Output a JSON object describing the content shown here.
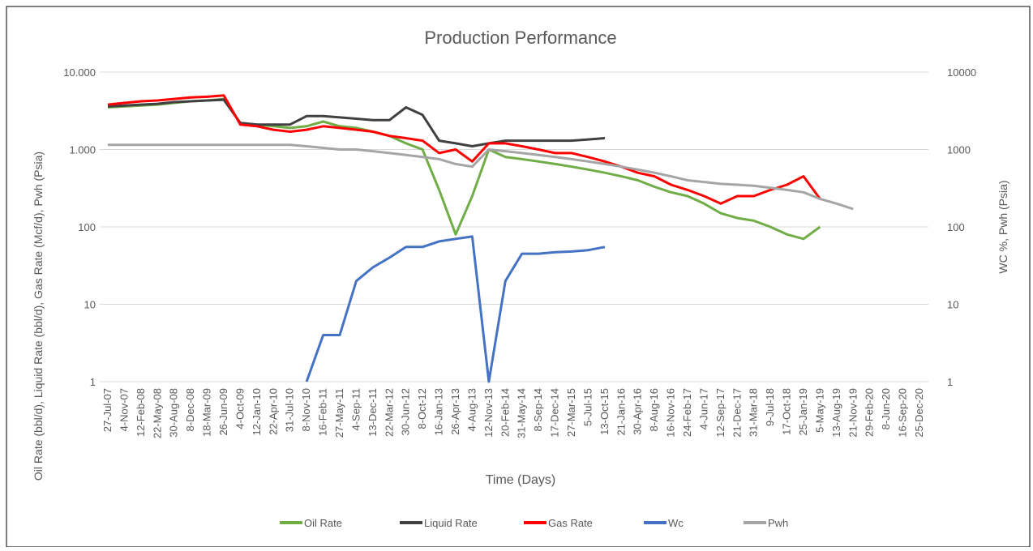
{
  "chart_data": {
    "type": "line",
    "title": "Production Performance",
    "x_label": "Time (Days)",
    "y_label": "Oil Rate (bbl/d), Liquid Rate (bbl/d), Gas Rate (Mcf/d), Pwh (Psia)",
    "y2_label": "WC %, Pwh (Psia)",
    "log_scale": true,
    "grid": true,
    "legend": "bottom",
    "x": [
      "27-Jul-07",
      "4-Nov-07",
      "12-Feb-08",
      "22-May-08",
      "30-Aug-08",
      "8-Dec-08",
      "18-Mar-09",
      "26-Jun-09",
      "4-Oct-09",
      "12-Jan-10",
      "22-Apr-10",
      "31-Jul-10",
      "8-Nov-10",
      "16-Feb-11",
      "27-May-11",
      "4-Sep-11",
      "13-Dec-11",
      "22-Mar-12",
      "30-Jun-12",
      "8-Oct-12",
      "16-Jan-13",
      "26-Apr-13",
      "4-Aug-13",
      "12-Nov-13",
      "20-Feb-14",
      "31-May-14",
      "8-Sep-14",
      "17-Dec-14",
      "27-Mar-15",
      "5-Jul-15",
      "13-Oct-15",
      "21-Jan-16",
      "30-Apr-16",
      "8-Aug-16",
      "16-Nov-16",
      "24-Feb-17",
      "4-Jun-17",
      "12-Sep-17",
      "21-Dec-17",
      "31-Mar-18",
      "9-Jul-18",
      "17-Oct-18",
      "25-Jan-19",
      "5-May-19",
      "13-Aug-19",
      "21-Nov-19",
      "29-Feb-20",
      "8-Jun-20",
      "16-Sep-20",
      "25-Dec-20"
    ],
    "ylim": [
      1,
      10000
    ],
    "yticks": [
      1,
      10,
      100,
      {
        "value": 1000,
        "label": "1.000"
      },
      {
        "value": 10000,
        "label": "10.000"
      }
    ],
    "y2lim": [
      1,
      10000
    ],
    "y2ticks": [
      1,
      10,
      100,
      1000,
      10000
    ],
    "series": [
      {
        "name": "Oil Rate",
        "color": "#70ad47",
        "values": [
          3500,
          3600,
          3700,
          3800,
          4000,
          4200,
          4300,
          4500,
          2200,
          2100,
          2000,
          1900,
          2000,
          2300,
          2000,
          1900,
          1700,
          1500,
          1200,
          1000,
          300,
          80,
          250,
          1000,
          800,
          750,
          700,
          650,
          600,
          550,
          500,
          450,
          400,
          330,
          280,
          250,
          200,
          150,
          130,
          120,
          100,
          80,
          70,
          100,
          null,
          null,
          null,
          null,
          null,
          null
        ]
      },
      {
        "name": "Liquid Rate",
        "color": "#404040",
        "values": [
          3600,
          3700,
          3800,
          3900,
          4100,
          4200,
          4300,
          4400,
          2200,
          2100,
          2100,
          2100,
          2700,
          2700,
          2600,
          2500,
          2400,
          2400,
          3500,
          2800,
          1300,
          1200,
          1100,
          1200,
          1300,
          1300,
          1300,
          1300,
          1300,
          1350,
          1400,
          null,
          null,
          null,
          null,
          null,
          null,
          null,
          null,
          null,
          null,
          null,
          null,
          null,
          null,
          null,
          null,
          null,
          null,
          null
        ]
      },
      {
        "name": "Gas Rate",
        "color": "#ff0000",
        "values": [
          3800,
          4000,
          4200,
          4300,
          4500,
          4700,
          4800,
          5000,
          2100,
          2000,
          1800,
          1700,
          1800,
          2000,
          1900,
          1800,
          1700,
          1500,
          1400,
          1300,
          900,
          1000,
          700,
          1200,
          1200,
          1100,
          1000,
          900,
          900,
          800,
          700,
          600,
          500,
          450,
          350,
          300,
          250,
          200,
          250,
          250,
          300,
          350,
          450,
          230,
          null,
          null,
          null,
          null,
          null,
          null
        ]
      },
      {
        "name": "Wc",
        "color": "#4472c4",
        "axis": "y2",
        "values": [
          null,
          null,
          null,
          null,
          null,
          null,
          null,
          null,
          null,
          null,
          null,
          null,
          1,
          4,
          4,
          20,
          30,
          40,
          55,
          55,
          65,
          70,
          75,
          1,
          20,
          45,
          45,
          47,
          48,
          50,
          55,
          null,
          null,
          null,
          null,
          null,
          null,
          null,
          null,
          null,
          null,
          null,
          null,
          null,
          null,
          null,
          null,
          null,
          null,
          null
        ]
      },
      {
        "name": "Pwh",
        "color": "#a5a5a5",
        "axis": "y2",
        "values": [
          1150,
          1150,
          1150,
          1150,
          1150,
          1150,
          1150,
          1150,
          1150,
          1150,
          1150,
          1150,
          1100,
          1050,
          1000,
          1000,
          950,
          900,
          850,
          800,
          750,
          650,
          600,
          1000,
          950,
          900,
          850,
          800,
          750,
          700,
          650,
          600,
          550,
          500,
          450,
          400,
          380,
          360,
          350,
          340,
          320,
          300,
          280,
          230,
          200,
          170,
          null,
          null,
          null,
          null
        ]
      }
    ]
  }
}
